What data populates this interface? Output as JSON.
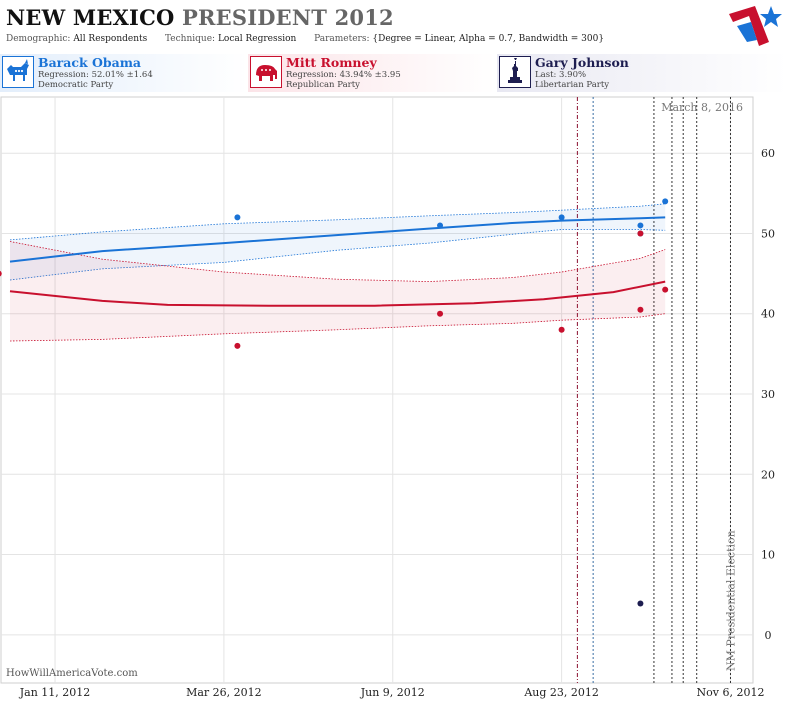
{
  "header": {
    "title_main": "NEW MEXICO",
    "title_sub": "PRESIDENT 2012",
    "demographic_label": "Demographic:",
    "demographic_value": "All Respondents",
    "technique_label": "Technique:",
    "technique_value": "Local Regression",
    "parameters_label": "Parameters:",
    "parameters_value": "{Degree = Linear, Alpha = 0.7, Bandwidth = 300}"
  },
  "legend": [
    {
      "name": "Barack Obama",
      "line2": "Regression: 52.01% ±1.64",
      "line3": "Democratic Party",
      "color": "#1a73d6",
      "icon": "donkey-icon"
    },
    {
      "name": "Mitt Romney",
      "line2": "Regression: 43.94% ±3.95",
      "line3": "Republican Party",
      "color": "#c8102e",
      "icon": "elephant-icon"
    },
    {
      "name": "Gary Johnson",
      "line2": "Last: 3.90%",
      "line3": "Libertarian Party",
      "color": "#1d1d50",
      "icon": "liberty-statue-icon"
    }
  ],
  "footer": {
    "source": "HowWillAmericaVote.com"
  },
  "chart_data": {
    "type": "scatter",
    "x_ticks": [
      "Jan 11, 2012",
      "Mar 26, 2012",
      "Jun 9, 2012",
      "Aug 23, 2012",
      "Nov 6, 2012"
    ],
    "y_ticks": [
      0,
      10,
      20,
      30,
      40,
      50,
      60
    ],
    "ylim": [
      -6,
      67
    ],
    "xlim": [
      "2011-12-18",
      "2012-11-16"
    ],
    "grid": true,
    "date_annotation": "March 8, 2016",
    "election_label": "NM Presidential Election",
    "election_date": "2012-11-06",
    "vlines": [
      {
        "date": "2012-08-30",
        "color": "#8b1030",
        "style": "dash-dot"
      },
      {
        "date": "2012-09-06",
        "color": "#3a6ea5",
        "style": "dot"
      },
      {
        "date": "2012-10-03",
        "color": "#333333",
        "style": "dot"
      },
      {
        "date": "2012-10-11",
        "color": "#333333",
        "style": "dot"
      },
      {
        "date": "2012-10-16",
        "color": "#333333",
        "style": "dot"
      },
      {
        "date": "2012-10-22",
        "color": "#333333",
        "style": "dot"
      }
    ],
    "series": [
      {
        "name": "Barack Obama",
        "color": "#1a73d6",
        "points": [
          [
            "2012-04-01",
            52
          ],
          [
            "2012-06-30",
            51
          ],
          [
            "2012-08-23",
            52
          ],
          [
            "2012-09-27",
            51
          ],
          [
            "2012-09-27",
            50
          ],
          [
            "2012-10-08",
            54
          ]
        ],
        "fit": [
          [
            "2011-12-22",
            46.5
          ],
          [
            "2012-02-01",
            47.8
          ],
          [
            "2012-03-26",
            48.8
          ],
          [
            "2012-05-15",
            49.8
          ],
          [
            "2012-06-25",
            50.6
          ],
          [
            "2012-08-01",
            51.3
          ],
          [
            "2012-08-23",
            51.6
          ],
          [
            "2012-09-27",
            51.9
          ],
          [
            "2012-10-08",
            52.0
          ]
        ],
        "band_upper": [
          [
            "2011-12-22",
            49.2
          ],
          [
            "2012-02-01",
            50.2
          ],
          [
            "2012-03-26",
            51.2
          ],
          [
            "2012-05-15",
            51.7
          ],
          [
            "2012-06-25",
            52.2
          ],
          [
            "2012-08-01",
            52.6
          ],
          [
            "2012-08-23",
            52.9
          ],
          [
            "2012-09-27",
            53.4
          ],
          [
            "2012-10-08",
            53.7
          ]
        ],
        "band_lower": [
          [
            "2011-12-22",
            44.2
          ],
          [
            "2012-02-01",
            45.6
          ],
          [
            "2012-03-26",
            46.4
          ],
          [
            "2012-05-15",
            47.9
          ],
          [
            "2012-06-25",
            48.8
          ],
          [
            "2012-08-01",
            49.9
          ],
          [
            "2012-08-23",
            50.5
          ],
          [
            "2012-09-27",
            50.5
          ],
          [
            "2012-10-08",
            50.4
          ]
        ]
      },
      {
        "name": "Mitt Romney",
        "color": "#c8102e",
        "points": [
          [
            "2011-12-17",
            45
          ],
          [
            "2012-04-01",
            36
          ],
          [
            "2012-06-30",
            40
          ],
          [
            "2012-08-23",
            38
          ],
          [
            "2012-09-27",
            50
          ],
          [
            "2012-09-27",
            40.5
          ],
          [
            "2012-10-08",
            43
          ]
        ],
        "fit": [
          [
            "2011-12-22",
            42.8
          ],
          [
            "2012-02-01",
            41.6
          ],
          [
            "2012-03-01",
            41.1
          ],
          [
            "2012-04-15",
            41.0
          ],
          [
            "2012-06-01",
            41.0
          ],
          [
            "2012-07-15",
            41.3
          ],
          [
            "2012-08-15",
            41.8
          ],
          [
            "2012-09-15",
            42.7
          ],
          [
            "2012-10-08",
            44.0
          ]
        ],
        "band_upper": [
          [
            "2011-12-22",
            49.0
          ],
          [
            "2012-02-01",
            46.8
          ],
          [
            "2012-03-26",
            45.2
          ],
          [
            "2012-05-15",
            44.3
          ],
          [
            "2012-06-25",
            44.0
          ],
          [
            "2012-08-01",
            44.5
          ],
          [
            "2012-08-23",
            45.2
          ],
          [
            "2012-09-27",
            46.9
          ],
          [
            "2012-10-08",
            48.0
          ]
        ],
        "band_lower": [
          [
            "2011-12-22",
            36.6
          ],
          [
            "2012-02-01",
            36.8
          ],
          [
            "2012-03-26",
            37.5
          ],
          [
            "2012-05-15",
            38.0
          ],
          [
            "2012-06-25",
            38.5
          ],
          [
            "2012-08-01",
            38.8
          ],
          [
            "2012-08-23",
            39.2
          ],
          [
            "2012-09-27",
            39.6
          ],
          [
            "2012-10-08",
            40.0
          ]
        ]
      },
      {
        "name": "Gary Johnson",
        "color": "#1d1d50",
        "points": [
          [
            "2012-09-27",
            3.9
          ]
        ]
      }
    ]
  }
}
